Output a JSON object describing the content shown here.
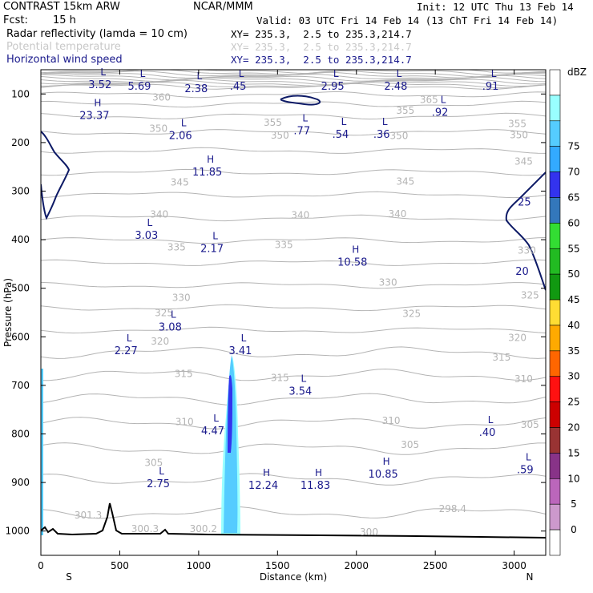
{
  "header": {
    "model": "CONTRAST 15km ARW",
    "org": "NCAR/MMM",
    "init": "Init: 12 UTC Thu 13 Feb 14",
    "fcst_label": "Fcst:",
    "fcst_value": "15 h",
    "valid": "Valid: 03 UTC Fri 14 Feb 14 (13 ChT Fri 14 Feb 14)",
    "fields": [
      {
        "name": "Radar reflectivity (lamda = 10 cm)",
        "xy": "XY= 235.3,  2.5 to 235.3,214.7",
        "color": "#000000"
      },
      {
        "name": "Potential temperature",
        "xy": "XY= 235.3,  2.5 to 235.3,214.7",
        "color": "#c8c8c8"
      },
      {
        "name": "Horizontal wind speed",
        "xy": "XY= 235.3,  2.5 to 235.3,214.7",
        "color": "#1a1a8c"
      }
    ]
  },
  "chart_data": {
    "type": "cross-section",
    "xlabel": "Distance (km)",
    "ylabel": "Pressure (hPa)",
    "xlim": [
      0,
      3200
    ],
    "ylim": [
      1050,
      50
    ],
    "x_ticks": [
      0,
      500,
      1000,
      1500,
      2000,
      2500,
      3000
    ],
    "y_ticks": [
      100,
      200,
      300,
      400,
      500,
      600,
      700,
      800,
      900,
      1000
    ],
    "x_end_labels": {
      "left": "S",
      "right": "N"
    },
    "colorbar": {
      "unit": "dBZ",
      "levels": [
        0,
        5,
        10,
        15,
        20,
        25,
        30,
        35,
        40,
        45,
        50,
        55,
        60,
        65,
        70,
        75
      ],
      "colors": [
        "#ffffff",
        "#99ffff",
        "#55ccff",
        "#33aaff",
        "#3333ee",
        "#3377bb",
        "#33dd33",
        "#22bb22",
        "#119911",
        "#ffdd33",
        "#ffaa00",
        "#ff6600",
        "#ff1111",
        "#cc0000",
        "#993333",
        "#883388",
        "#bb66bb",
        "#cc99cc",
        "#ffffff"
      ]
    },
    "theta_labels": [
      {
        "text": "360",
        "x": 765,
        "p": 108
      },
      {
        "text": "365",
        "x": 2460,
        "p": 113
      },
      {
        "text": "355",
        "x": 1470,
        "p": 160
      },
      {
        "text": "355",
        "x": 2310,
        "p": 135
      },
      {
        "text": "355",
        "x": 3020,
        "p": 162
      },
      {
        "text": "350",
        "x": 745,
        "p": 172
      },
      {
        "text": "350",
        "x": 1515,
        "p": 186
      },
      {
        "text": "350",
        "x": 2270,
        "p": 187
      },
      {
        "text": "350",
        "x": 3030,
        "p": 185
      },
      {
        "text": "345",
        "x": 880,
        "p": 283
      },
      {
        "text": "345",
        "x": 2310,
        "p": 281
      },
      {
        "text": "345",
        "x": 3060,
        "p": 240
      },
      {
        "text": "340",
        "x": 750,
        "p": 349
      },
      {
        "text": "340",
        "x": 1645,
        "p": 350
      },
      {
        "text": "340",
        "x": 2260,
        "p": 348
      },
      {
        "text": "335",
        "x": 860,
        "p": 416
      },
      {
        "text": "335",
        "x": 1540,
        "p": 411
      },
      {
        "text": "330",
        "x": 3080,
        "p": 423
      },
      {
        "text": "330",
        "x": 890,
        "p": 520
      },
      {
        "text": "330",
        "x": 2200,
        "p": 489
      },
      {
        "text": "325",
        "x": 780,
        "p": 552
      },
      {
        "text": "325",
        "x": 2350,
        "p": 553
      },
      {
        "text": "325",
        "x": 3100,
        "p": 515
      },
      {
        "text": "320",
        "x": 755,
        "p": 610
      },
      {
        "text": "320",
        "x": 3020,
        "p": 603
      },
      {
        "text": "315",
        "x": 905,
        "p": 677
      },
      {
        "text": "315",
        "x": 1515,
        "p": 685
      },
      {
        "text": "315",
        "x": 2920,
        "p": 643
      },
      {
        "text": "310",
        "x": 3060,
        "p": 688
      },
      {
        "text": "310",
        "x": 910,
        "p": 776
      },
      {
        "text": "310",
        "x": 2220,
        "p": 774
      },
      {
        "text": "305",
        "x": 2340,
        "p": 823
      },
      {
        "text": "305",
        "x": 715,
        "p": 860
      },
      {
        "text": "305",
        "x": 3100,
        "p": 782
      },
      {
        "text": "301.3",
        "x": 300,
        "p": 968
      },
      {
        "text": "300.3",
        "x": 660,
        "p": 996
      },
      {
        "text": "300.2",
        "x": 1030,
        "p": 996
      },
      {
        "text": "300",
        "x": 2080,
        "p": 1003
      },
      {
        "text": "298.4",
        "x": 2610,
        "p": 955
      }
    ],
    "wind_extrema": [
      {
        "type": "L",
        "value": "3.52",
        "x": 395,
        "p": 65
      },
      {
        "type": "L",
        "value": "5.69",
        "x": 645,
        "p": 68
      },
      {
        "type": "L",
        "value": "2.38",
        "x": 1005,
        "p": 73
      },
      {
        "type": "L",
        "value": ".45",
        "x": 1270,
        "p": 68
      },
      {
        "type": "L",
        "value": "2.95",
        "x": 1870,
        "p": 68
      },
      {
        "type": "L",
        "value": "2.48",
        "x": 2270,
        "p": 68
      },
      {
        "type": "L",
        "value": ".91",
        "x": 2870,
        "p": 68
      },
      {
        "type": "L",
        "value": ".92",
        "x": 2550,
        "p": 122
      },
      {
        "type": "H",
        "value": "23.37",
        "x": 360,
        "p": 128
      },
      {
        "type": "L",
        "value": "2.06",
        "x": 905,
        "p": 170
      },
      {
        "type": "L",
        "value": ".77",
        "x": 1675,
        "p": 160
      },
      {
        "type": "L",
        "value": ".54",
        "x": 1920,
        "p": 167
      },
      {
        "type": "L",
        "value": ".36",
        "x": 2180,
        "p": 167
      },
      {
        "type": "H",
        "value": "11.85",
        "x": 1075,
        "p": 245
      },
      {
        "type": "L",
        "value": "3.03",
        "x": 690,
        "p": 375
      },
      {
        "type": "L",
        "value": "2.17",
        "x": 1105,
        "p": 402
      },
      {
        "type": "H",
        "value": "10.58",
        "x": 1995,
        "p": 430
      },
      {
        "type": "L",
        "value": "3.08",
        "x": 840,
        "p": 564
      },
      {
        "type": "L",
        "value": "2.27",
        "x": 560,
        "p": 613
      },
      {
        "type": "L",
        "value": "3.41",
        "x": 1285,
        "p": 613
      },
      {
        "type": "L",
        "value": "3.54",
        "x": 1665,
        "p": 696
      },
      {
        "type": "L",
        "value": "4.47",
        "x": 1110,
        "p": 778
      },
      {
        "type": "L",
        "value": ".40",
        "x": 2850,
        "p": 781
      },
      {
        "type": "L",
        "value": ".59",
        "x": 3090,
        "p": 858
      },
      {
        "type": "H",
        "value": "10.85",
        "x": 2190,
        "p": 867
      },
      {
        "type": "H",
        "value": "12.24",
        "x": 1430,
        "p": 890
      },
      {
        "type": "H",
        "value": "11.83",
        "x": 1760,
        "p": 890
      },
      {
        "type": "L",
        "value": "2.75",
        "x": 765,
        "p": 887
      }
    ],
    "wind_contour_labels": [
      {
        "text": "25",
        "x": 3065,
        "p": 324
      },
      {
        "text": "20",
        "x": 3050,
        "p": 467
      }
    ]
  }
}
